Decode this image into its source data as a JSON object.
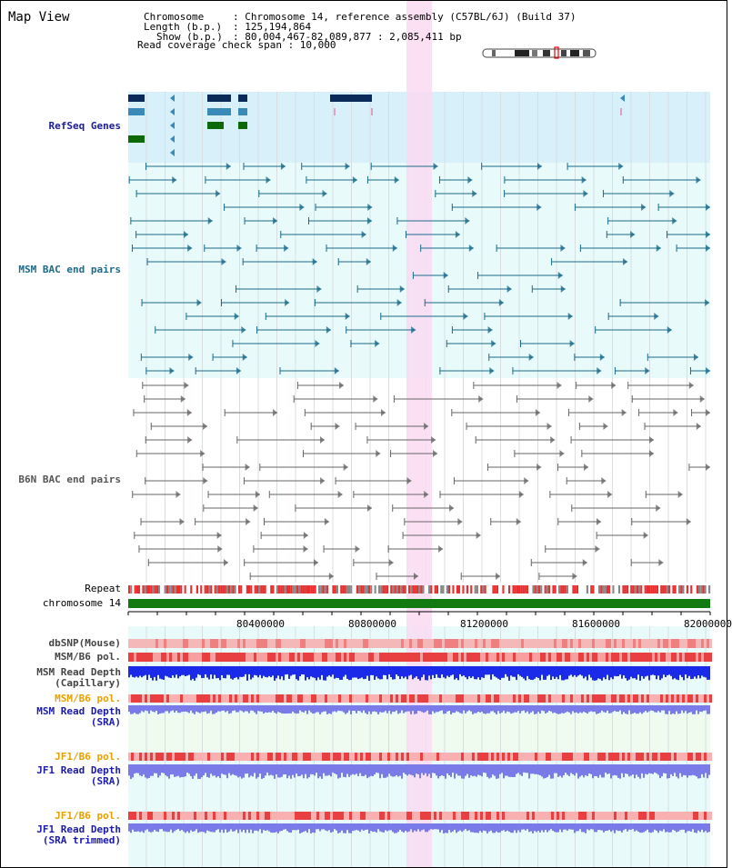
{
  "page": {
    "title": "Map View"
  },
  "info": {
    "chromosome_label": "Chromosome",
    "chromosome_value": ": Chromosome 14, reference assembly (C57BL/6J) (Build 37)",
    "length_label": "Length (b.p.)",
    "length_value": ": 125,194,864",
    "show_label": "Show (b.p.)",
    "show_value": ": 80,004,467-82,089,877 : 2,085,411 bp",
    "coverage_line": "Read coverage check span : 10,000"
  },
  "tracks": {
    "refseq": "RefSeq Genes",
    "msm_bac": "MSM BAC end pairs",
    "b6n_bac": "B6N BAC end pairs",
    "repeat": "Repeat",
    "chromosome": "chromosome 14",
    "dbsnp": "dbSNP(Mouse)",
    "msm_b6_pol": "MSM/B6 pol.",
    "msm_read_depth_cap": "MSM Read Depth\n(Capillary)",
    "msm_b6_pol2": "MSM/B6 pol.",
    "msm_read_depth_sra": "MSM Read Depth\n(SRA)",
    "jf1_b6_pol": "JF1/B6 pol.",
    "jf1_read_depth_sra": "JF1 Read Depth\n(SRA)",
    "jf1_b6_pol2": "JF1/B6 pol.",
    "jf1_read_depth_trim": "JF1 Read Depth\n(SRA trimmed)"
  },
  "axis": {
    "ticks": [
      "80400000",
      "80800000",
      "81200000",
      "81600000",
      "82000000"
    ]
  },
  "colors": {
    "highlight": "#fadaf2",
    "refseq_bg": "#d8f0fa",
    "msm_bg": "#e8fafa",
    "gene_dark": "#0a2a5a",
    "gene_mid": "#3a8ab8",
    "gene_green": "#0a6a0a",
    "msm_pair": "#1a6a8a",
    "b6n_pair": "#666666",
    "chrom_bar": "#117a11",
    "snp_pink": "#f5b8b8",
    "pol_red": "#e84040",
    "depth_blue": "#1a2ae8",
    "depth_light": "#7a7ae8"
  }
}
